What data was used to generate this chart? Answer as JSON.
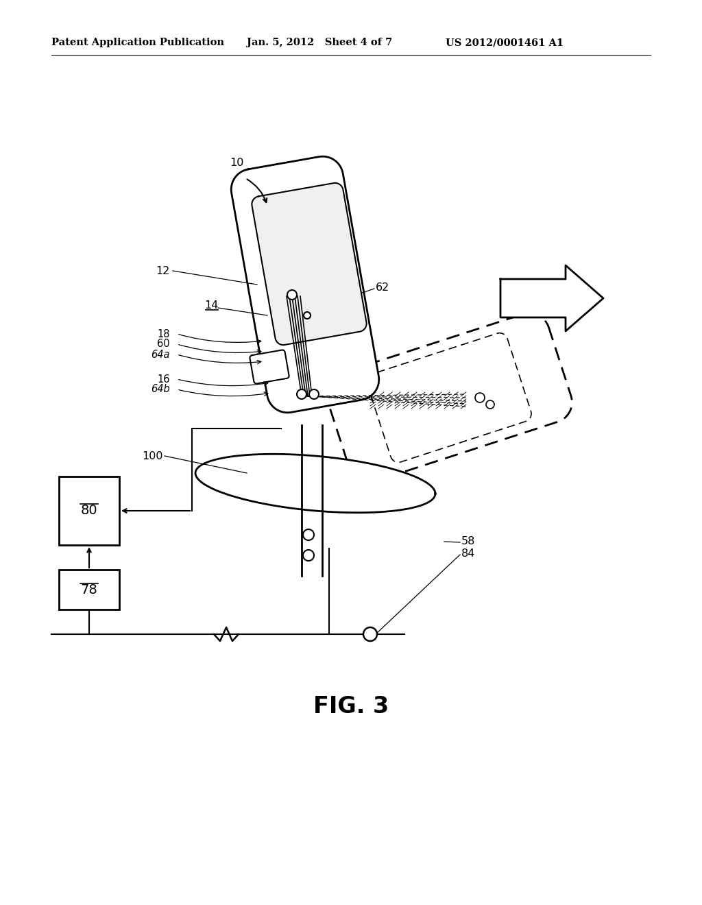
{
  "title_left": "Patent Application Publication",
  "title_center": "Jan. 5, 2012   Sheet 4 of 7",
  "title_right": "US 2012/0001461 A1",
  "fig_label": "FIG. 3",
  "background_color": "#ffffff",
  "line_color": "#000000"
}
